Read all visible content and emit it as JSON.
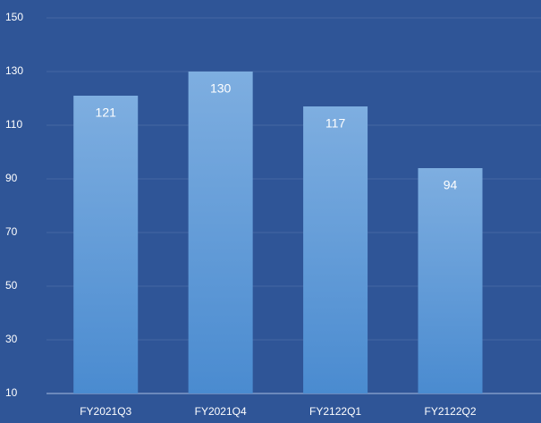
{
  "chart_data": {
    "type": "bar",
    "categories": [
      "FY2021Q3",
      "FY2021Q4",
      "FY2122Q1",
      "FY2122Q2"
    ],
    "values": [
      121,
      130,
      117,
      94
    ],
    "color": "#5b9bd5",
    "ylim": [
      10,
      150
    ],
    "yticks": [
      10,
      30,
      50,
      70,
      90,
      110,
      130,
      150
    ],
    "grid": true
  }
}
